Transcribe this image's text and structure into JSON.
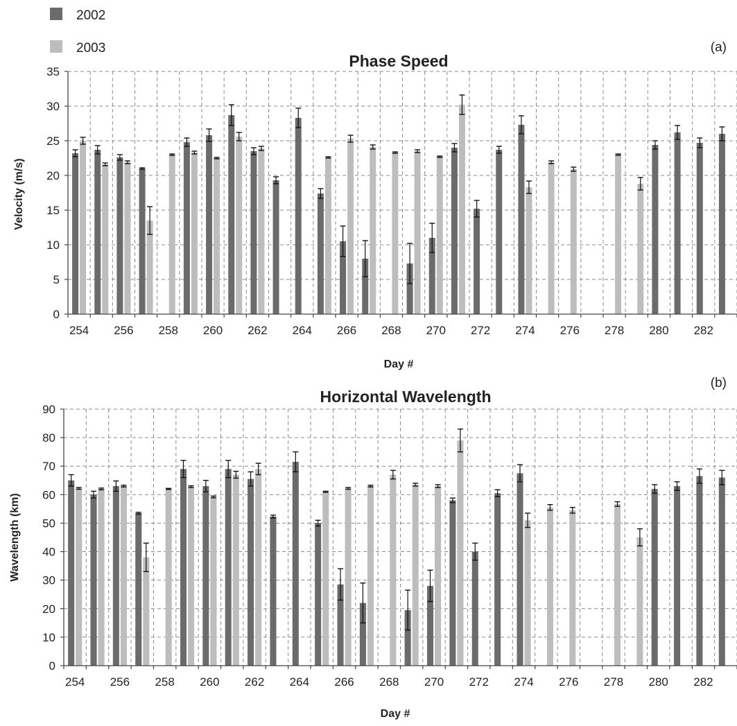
{
  "legend": [
    {
      "label": "2002",
      "color": "#6b6b6b"
    },
    {
      "label": "2003",
      "color": "#bdbdbd"
    }
  ],
  "chart_data": [
    {
      "type": "bar",
      "panel_label": "(a)",
      "title": "Phase Speed",
      "xlabel": "Day #",
      "ylabel": "Velocity (m/s)",
      "ylim": [
        0,
        35
      ],
      "yticks": [
        0,
        5,
        10,
        15,
        20,
        25,
        30,
        35
      ],
      "xticks": [
        254,
        256,
        258,
        260,
        262,
        264,
        266,
        268,
        270,
        272,
        274,
        276,
        278,
        280,
        282
      ],
      "grid": true,
      "legend_position": "top-left",
      "days": [
        254,
        255,
        256,
        257,
        258,
        259,
        260,
        261,
        262,
        263,
        264,
        265,
        266,
        267,
        268,
        269,
        270,
        271,
        272,
        273,
        274,
        275,
        276,
        277,
        278,
        279,
        280,
        281,
        282,
        283
      ],
      "series": [
        {
          "name": "2002",
          "color": "#6b6b6b",
          "values": [
            23.2,
            23.7,
            22.6,
            21.0,
            null,
            24.8,
            25.8,
            28.7,
            23.5,
            19.3,
            28.3,
            17.4,
            10.5,
            8.0,
            null,
            7.3,
            11.0,
            24.0,
            15.2,
            23.7,
            27.3,
            null,
            null,
            null,
            null,
            null,
            24.4,
            26.2,
            24.7,
            26.0
          ],
          "errors": [
            0.5,
            0.6,
            0.4,
            0.1,
            null,
            0.6,
            0.9,
            1.5,
            0.5,
            0.5,
            1.4,
            0.7,
            2.2,
            2.6,
            null,
            2.9,
            2.1,
            0.6,
            1.2,
            0.5,
            1.3,
            null,
            null,
            null,
            null,
            null,
            0.6,
            1.0,
            0.7,
            1.0
          ]
        },
        {
          "name": "2003",
          "color": "#bdbdbd",
          "values": [
            25.0,
            21.6,
            21.9,
            13.5,
            23.0,
            23.3,
            22.5,
            25.6,
            23.9,
            null,
            null,
            22.6,
            25.3,
            24.1,
            23.3,
            23.5,
            22.7,
            30.2,
            null,
            null,
            18.3,
            21.9,
            20.9,
            null,
            23.0,
            18.8,
            null,
            null,
            null,
            null
          ],
          "errors": [
            0.5,
            0.2,
            0.2,
            2.0,
            0.1,
            0.2,
            0.1,
            0.6,
            0.3,
            null,
            null,
            0.1,
            0.5,
            0.3,
            0.1,
            0.2,
            0.1,
            1.4,
            null,
            null,
            0.9,
            0.2,
            0.3,
            null,
            0.1,
            0.9,
            null,
            null,
            null,
            null
          ]
        }
      ]
    },
    {
      "type": "bar",
      "panel_label": "(b)",
      "title": "Horizontal Wavelength",
      "xlabel": "Day #",
      "ylabel": "Wavelength (km)",
      "ylim": [
        0,
        90
      ],
      "yticks": [
        0,
        10,
        20,
        30,
        40,
        50,
        60,
        70,
        80,
        90
      ],
      "xticks": [
        254,
        256,
        258,
        260,
        262,
        264,
        266,
        268,
        270,
        272,
        274,
        276,
        278,
        280,
        282
      ],
      "grid": true,
      "days": [
        254,
        255,
        256,
        257,
        258,
        259,
        260,
        261,
        262,
        263,
        264,
        265,
        266,
        267,
        268,
        269,
        270,
        271,
        272,
        273,
        274,
        275,
        276,
        277,
        278,
        279,
        280,
        281,
        282,
        283
      ],
      "series": [
        {
          "name": "2002",
          "color": "#6b6b6b",
          "values": [
            65,
            60,
            63,
            53.5,
            null,
            69,
            63,
            69,
            65.5,
            52.3,
            71.5,
            50,
            28.5,
            22,
            null,
            19.5,
            28,
            58,
            40,
            60.5,
            67.5,
            null,
            null,
            null,
            null,
            null,
            62,
            63,
            66.5,
            66
          ],
          "errors": [
            2,
            1.2,
            1.8,
            0.3,
            null,
            3,
            2,
            3,
            2.5,
            0.5,
            3.5,
            1,
            5.5,
            7,
            null,
            7,
            5.5,
            0.8,
            3,
            1.2,
            3,
            null,
            null,
            null,
            null,
            null,
            1.5,
            1.5,
            2.5,
            2.5
          ]
        },
        {
          "name": "2003",
          "color": "#bdbdbd",
          "values": [
            62.2,
            62,
            63,
            38,
            62,
            62.8,
            59.2,
            67,
            69,
            null,
            null,
            61,
            62.2,
            63,
            67,
            63.5,
            63,
            79,
            null,
            null,
            51,
            55.5,
            54.5,
            null,
            56.7,
            45,
            null,
            null,
            null,
            null
          ],
          "errors": [
            0.3,
            0.3,
            0.3,
            5,
            0.2,
            0.3,
            0.3,
            1.2,
            2,
            null,
            null,
            0.2,
            0.3,
            0.3,
            1.5,
            0.5,
            0.5,
            4,
            null,
            null,
            2.5,
            1,
            1,
            null,
            0.8,
            3,
            null,
            null,
            null,
            null
          ]
        }
      ]
    }
  ]
}
